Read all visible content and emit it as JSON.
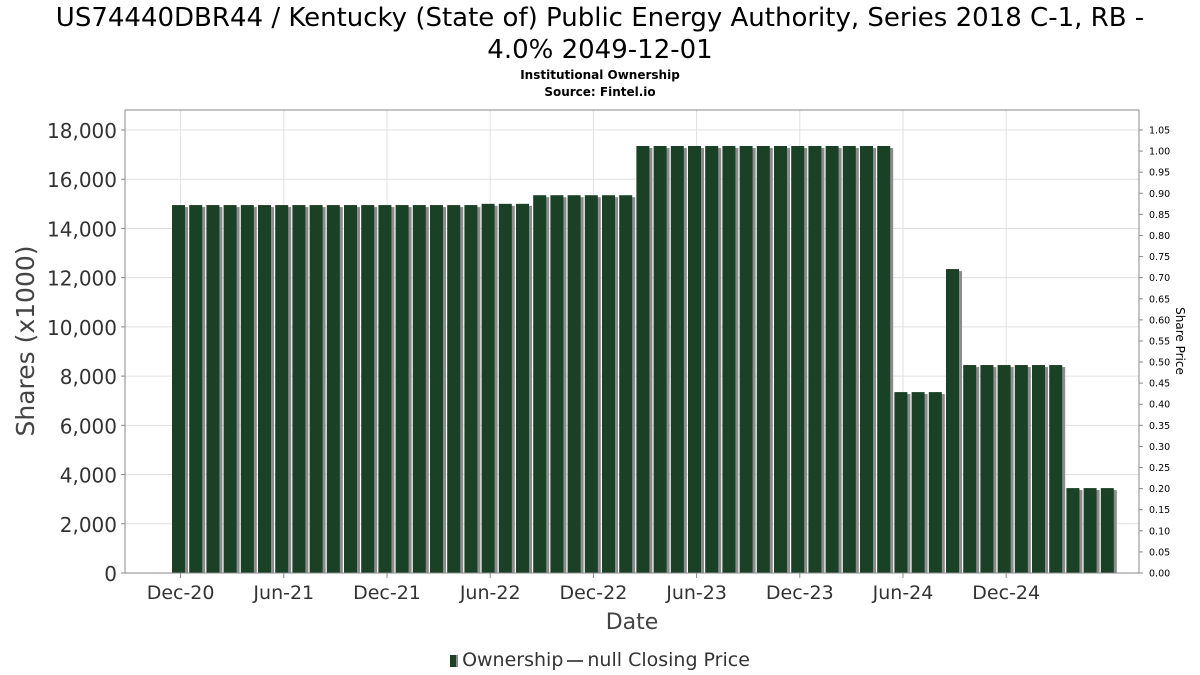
{
  "title_line1": "US74440DBR44 / Kentucky (State of) Public Energy Authority, Series 2018 C-1, RB -",
  "title_line2": "4.0% 2049-12-01",
  "subtitle_line1": "Institutional Ownership",
  "subtitle_line2": "Source: Fintel.io",
  "legend": {
    "ownership": "Ownership",
    "price": "null Closing Price"
  },
  "colors": {
    "bar": "#1a4025",
    "bar_shadow": "#8c8c8c",
    "grid": "#e0e0e0",
    "axis": "#888888"
  },
  "chart_data": {
    "type": "bar",
    "xlabel": "Date",
    "ylabel": "Shares (x1000)",
    "y2label": "Share Price",
    "ylim": [
      0,
      18000
    ],
    "y2lim": [
      0,
      1.05
    ],
    "yticks": [
      0,
      2000,
      4000,
      6000,
      8000,
      10000,
      12000,
      14000,
      16000,
      18000
    ],
    "ytick_labels": [
      "0",
      "2,000",
      "4,000",
      "6,000",
      "8,000",
      "10,000",
      "12,000",
      "14,000",
      "16,000",
      "18,000"
    ],
    "y2tick_labels": [
      "0.00",
      "0.05",
      "0.10",
      "0.15",
      "0.20",
      "0.25",
      "0.30",
      "0.35",
      "0.40",
      "0.45",
      "0.50",
      "0.55",
      "0.60",
      "0.65",
      "0.70",
      "0.75",
      "0.80",
      "0.85",
      "0.90",
      "0.95",
      "1.00",
      "1.05"
    ],
    "xtick_labels": [
      "Dec-20",
      "Jun-21",
      "Dec-21",
      "Jun-22",
      "Dec-22",
      "Jun-23",
      "Dec-23",
      "Jun-24",
      "Dec-24"
    ],
    "xtick_index": [
      0.5,
      6.5,
      12.5,
      18.5,
      24.5,
      30.5,
      36.5,
      42.5,
      48.5
    ],
    "grid": true,
    "series": [
      {
        "name": "Ownership",
        "values": [
          14950,
          14950,
          14950,
          14950,
          14950,
          14950,
          14950,
          14950,
          14950,
          14950,
          14950,
          14950,
          14950,
          14950,
          14950,
          14950,
          14950,
          14950,
          15000,
          15000,
          15000,
          15350,
          15350,
          15350,
          15350,
          15350,
          15350,
          17350,
          17350,
          17350,
          17350,
          17350,
          17350,
          17350,
          17350,
          17350,
          17350,
          17350,
          17350,
          17350,
          17350,
          17350,
          7350,
          7350,
          7350,
          12350,
          8450,
          8450,
          8450,
          8450,
          8450,
          8450,
          3450,
          3450,
          3450
        ]
      }
    ]
  }
}
